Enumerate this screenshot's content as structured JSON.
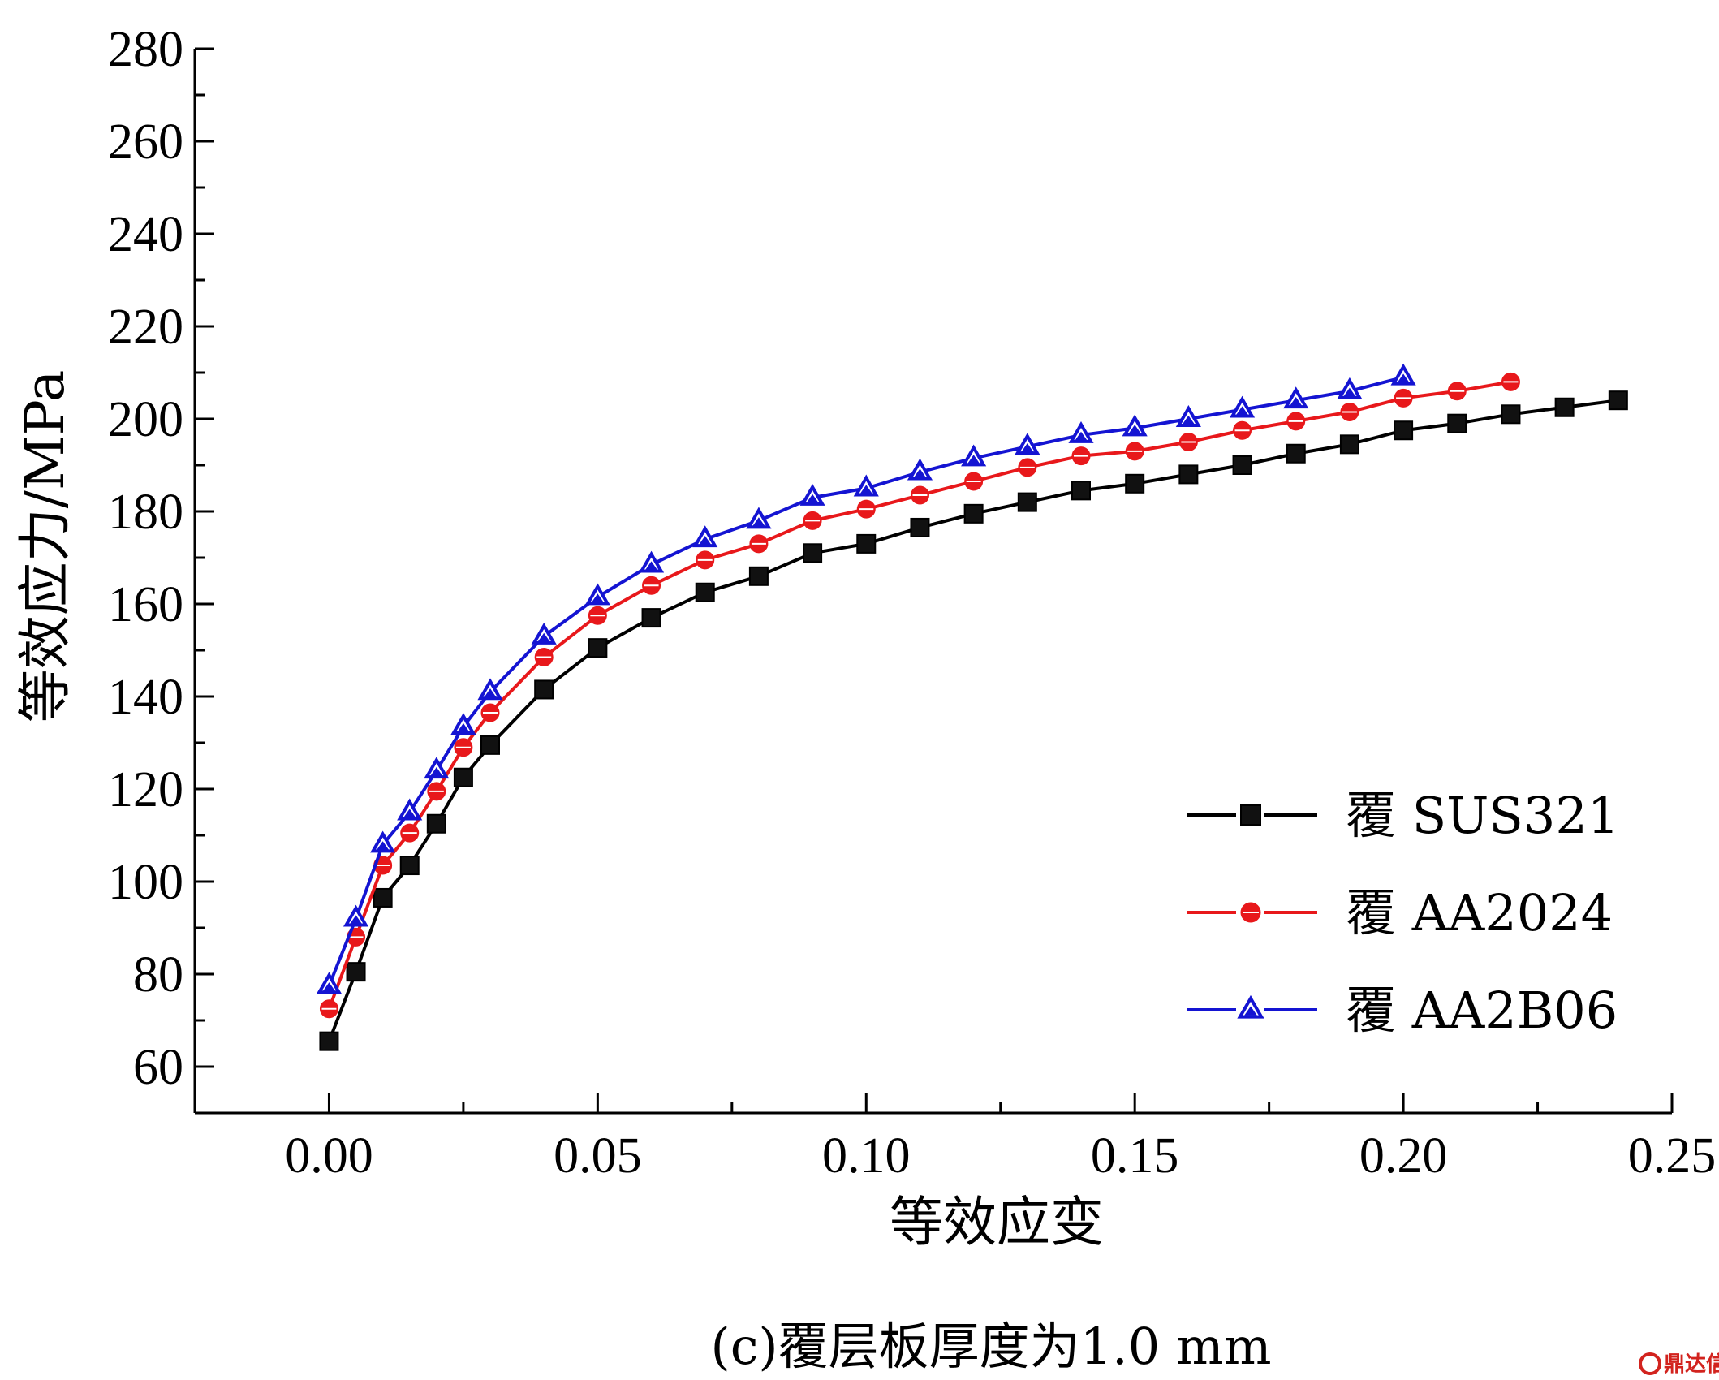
{
  "chart_data": {
    "type": "line",
    "title": "",
    "xlabel": "等效应变",
    "ylabel": "等效应力/MPa",
    "xlim": [
      -0.025,
      0.25
    ],
    "ylim": [
      50,
      280
    ],
    "x_ticks": [
      "0.00",
      "0.05",
      "0.10",
      "0.15",
      "0.20",
      "0.25"
    ],
    "y_ticks": [
      "60",
      "80",
      "100",
      "120",
      "140",
      "160",
      "180",
      "200",
      "220",
      "240",
      "260",
      "280"
    ],
    "grid": false,
    "legend_position": "bottom-right",
    "series": [
      {
        "name": "覆 SUS321",
        "color": "#000000",
        "marker": "square",
        "x": [
          0,
          0.005,
          0.01,
          0.015,
          0.02,
          0.025,
          0.03,
          0.04,
          0.05,
          0.06,
          0.07,
          0.08,
          0.09,
          0.1,
          0.11,
          0.12,
          0.13,
          0.14,
          0.15,
          0.16,
          0.17,
          0.18,
          0.19,
          0.2,
          0.21,
          0.22,
          0.23,
          0.24
        ],
        "y": [
          65.5,
          80.5,
          96.5,
          103.5,
          112.5,
          122.5,
          129.5,
          141.5,
          150.5,
          157,
          162.5,
          166,
          171,
          173,
          176.5,
          179.5,
          182,
          184.5,
          186,
          188,
          190,
          192.5,
          194.5,
          197.5,
          199,
          201,
          202.5,
          204
        ]
      },
      {
        "name": "覆 AA2024",
        "color": "#e8181b",
        "marker": "circle",
        "x": [
          0,
          0.005,
          0.01,
          0.015,
          0.02,
          0.025,
          0.03,
          0.04,
          0.05,
          0.06,
          0.07,
          0.08,
          0.09,
          0.1,
          0.11,
          0.12,
          0.13,
          0.14,
          0.15,
          0.16,
          0.17,
          0.18,
          0.19,
          0.2,
          0.21,
          0.22
        ],
        "y": [
          72.5,
          88,
          103.5,
          110.5,
          119.5,
          129,
          136.5,
          148.5,
          157.5,
          164,
          169.5,
          173,
          178,
          180.5,
          183.5,
          186.5,
          189.5,
          192,
          193,
          195,
          197.5,
          199.5,
          201.5,
          204.5,
          206,
          208
        ]
      },
      {
        "name": "覆 AA2B06",
        "color": "#1414d2",
        "marker": "triangle",
        "x": [
          0,
          0.005,
          0.01,
          0.015,
          0.02,
          0.025,
          0.03,
          0.04,
          0.05,
          0.06,
          0.07,
          0.08,
          0.09,
          0.1,
          0.11,
          0.12,
          0.13,
          0.14,
          0.15,
          0.16,
          0.17,
          0.18,
          0.19,
          0.2
        ],
        "y": [
          77.5,
          92,
          108,
          115,
          124,
          133.5,
          141,
          153,
          161.5,
          168.5,
          174,
          178,
          183,
          185,
          188.5,
          191.5,
          194,
          196.5,
          198,
          200,
          202,
          204,
          206,
          209
        ]
      }
    ]
  },
  "caption": "(c)覆层板厚度为1.0 mm",
  "watermark": "鼎达信"
}
